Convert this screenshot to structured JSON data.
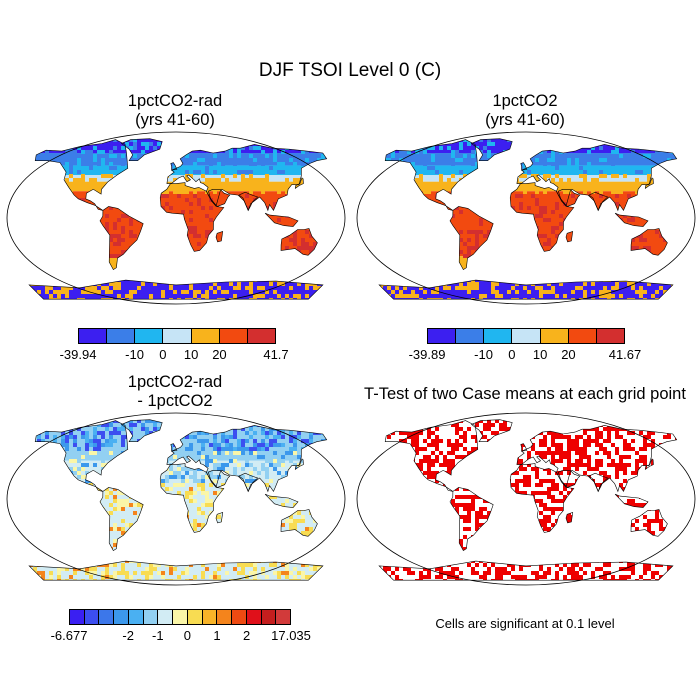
{
  "figure": {
    "title": "DJF TSOI Level 0 (C)"
  },
  "panels": [
    {
      "id": "p1",
      "title_line1": "1pctCO2-rad",
      "title_line2": "(yrs 41-60)",
      "colorbar": {
        "colors": [
          "#3c1ff0",
          "#3b7ee8",
          "#20b6f0",
          "#c6e4f6",
          "#f8b31c",
          "#f24a10",
          "#d32f2f"
        ],
        "labels": [
          "-39.94",
          "-10",
          "0",
          "10",
          "20",
          "41.7"
        ]
      }
    },
    {
      "id": "p2",
      "title_line1": "1pctCO2",
      "title_line2": "(yrs 41-60)",
      "colorbar": {
        "colors": [
          "#3c1ff0",
          "#3b7ee8",
          "#20b6f0",
          "#c6e4f6",
          "#f8b31c",
          "#f24a10",
          "#d32f2f"
        ],
        "labels": [
          "-39.89",
          "-10",
          "0",
          "10",
          "20",
          "41.67"
        ]
      }
    },
    {
      "id": "p3",
      "title_line1": "1pctCO2-rad",
      "title_line2": "- 1pctCO2",
      "colorbar": {
        "colors": [
          "#3a1ff2",
          "#3c4ef0",
          "#3c77ea",
          "#3c98ec",
          "#4ab0f2",
          "#92d0f2",
          "#d2ecf4",
          "#faf6a8",
          "#f8dc52",
          "#f8b428",
          "#f4841c",
          "#ee4a12",
          "#e0101a",
          "#c41e1e",
          "#d23a3a"
        ],
        "labels": [
          "-6.677",
          "-2",
          "-1",
          "0",
          "1",
          "2",
          "17.035"
        ]
      }
    },
    {
      "id": "p4",
      "title_line1": "T-Test of two Case means at each grid point",
      "significance_color": "#ee0000",
      "note": "Cells are significant at 0.1 level"
    }
  ],
  "legend_colors": {
    "ocean": "#ffffff",
    "land_outline": "#000000"
  }
}
